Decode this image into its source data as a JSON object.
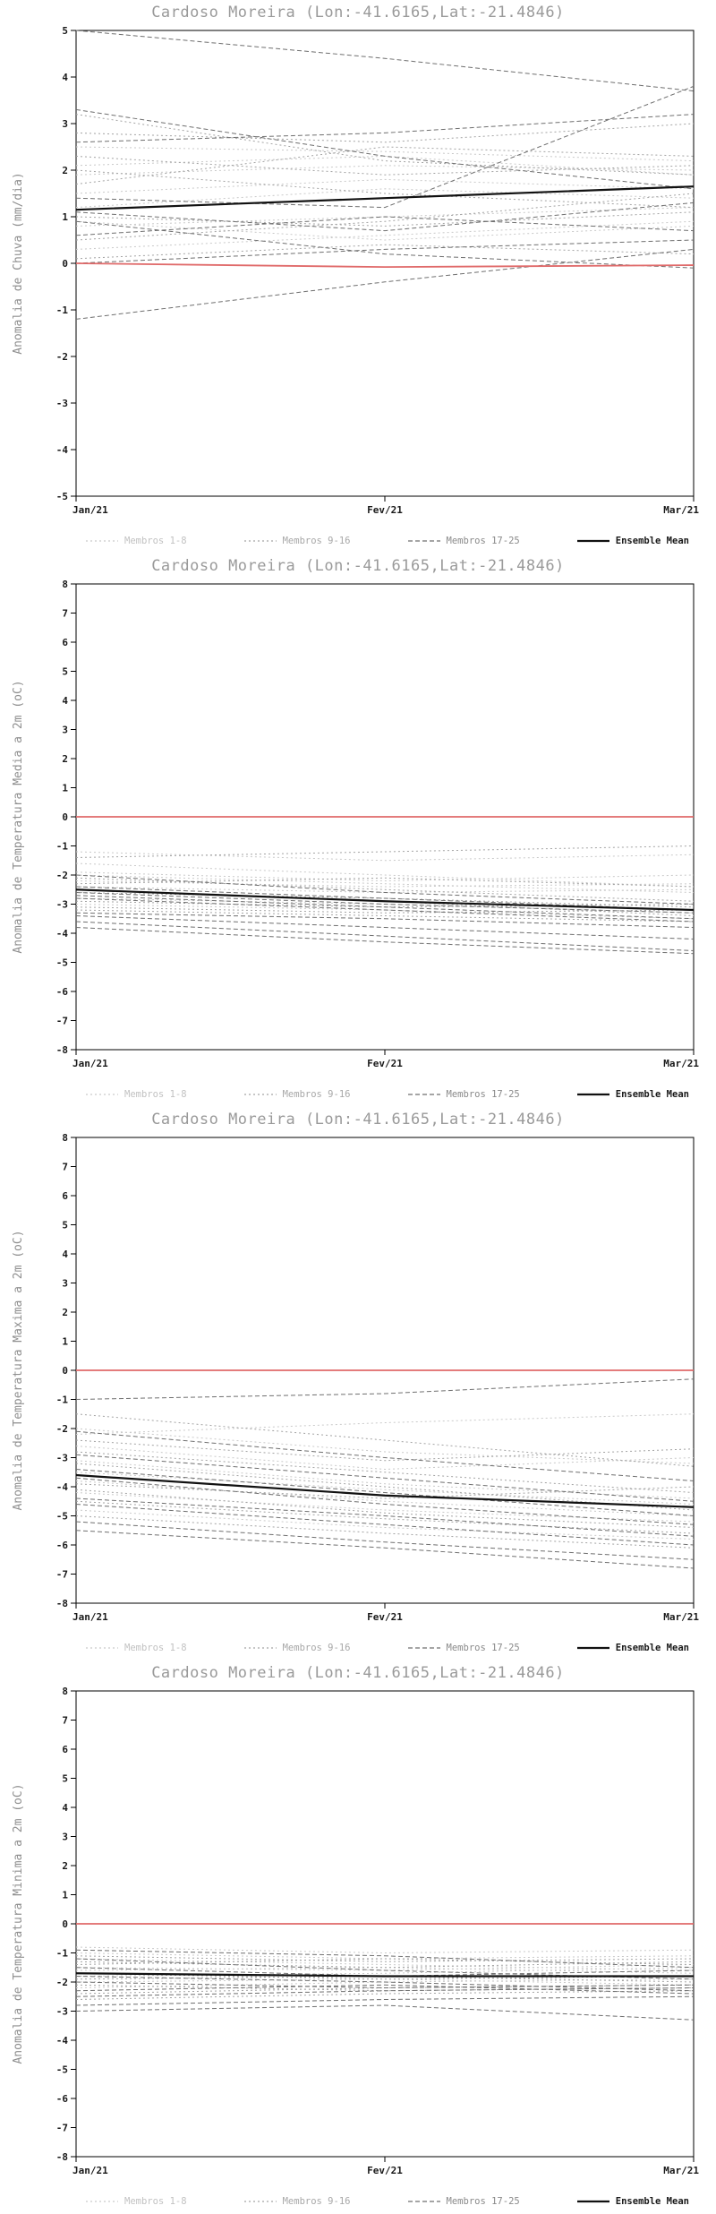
{
  "page": {
    "background": "#ffffff"
  },
  "colors": {
    "title": "#9a9a9a",
    "label": "#8f8f8f",
    "axis": "#000000",
    "tick_text": "#1a1a1a",
    "members_1_8": "#c9c9c9",
    "members_9_16": "#a3a3a3",
    "members_17_25": "#6f6f6f",
    "ensemble_mean": "#111111",
    "zero_line": "#e06a6a"
  },
  "legend": {
    "entries": [
      {
        "label": "Membros 1-8"
      },
      {
        "label": "Membros 9-16"
      },
      {
        "label": "Membros 17-25"
      },
      {
        "label": "Ensemble Mean"
      }
    ]
  },
  "chart_data": [
    {
      "type": "line",
      "title": "Cardoso Moreira (Lon:-41.6165,Lat:-21.4846)",
      "ylabel": "Anomalia de Chuva (mm/dia)",
      "ylim": [
        -5,
        5
      ],
      "ytick_step": 1,
      "x_categories": [
        "Jan/21",
        "Fev/21",
        "Mar/21"
      ],
      "reference_line": [
        0,
        -0.08,
        -0.04
      ],
      "ensemble_mean": [
        1.15,
        1.4,
        1.65
      ],
      "groups": [
        {
          "name": "Membros 1-8",
          "color_key": "members_1_8",
          "series": [
            [
              0.8,
              1.0,
              1.2
            ],
            [
              1.5,
              1.8,
              1.6
            ],
            [
              2.1,
              2.3,
              1.9
            ],
            [
              0.3,
              0.6,
              0.9
            ],
            [
              1.9,
              2.1,
              2.0
            ],
            [
              2.5,
              2.4,
              2.2
            ],
            [
              0.9,
              0.5,
              0.8
            ],
            [
              1.2,
              1.6,
              1.4
            ]
          ]
        },
        {
          "name": "Membros 9-16",
          "color_key": "members_9_16",
          "series": [
            [
              3.2,
              2.2,
              1.9
            ],
            [
              2.8,
              2.6,
              3.0
            ],
            [
              0.1,
              0.4,
              0.2
            ],
            [
              1.0,
              0.8,
              1.1
            ],
            [
              2.0,
              1.5,
              1.2
            ],
            [
              0.5,
              0.9,
              1.5
            ],
            [
              1.7,
              2.5,
              2.3
            ],
            [
              2.3,
              1.9,
              2.1
            ]
          ]
        },
        {
          "name": "Membros 17-25",
          "color_key": "members_17_25",
          "series": [
            [
              3.3,
              2.3,
              1.6
            ],
            [
              -1.2,
              -0.4,
              0.3
            ],
            [
              0.9,
              0.2,
              -0.1
            ],
            [
              0.0,
              0.3,
              0.5
            ],
            [
              1.4,
              1.2,
              3.8
            ],
            [
              2.6,
              2.8,
              3.2
            ],
            [
              0.6,
              1.0,
              0.7
            ],
            [
              1.1,
              0.7,
              1.3
            ],
            [
              5.0,
              4.4,
              3.7
            ]
          ]
        }
      ]
    },
    {
      "type": "line",
      "title": "Cardoso Moreira (Lon:-41.6165,Lat:-21.4846)",
      "ylabel": "Anomalia de Temperatura Media a 2m (oC)",
      "ylim": [
        -8,
        8
      ],
      "ytick_step": 1,
      "x_categories": [
        "Jan/21",
        "Fev/21",
        "Mar/21"
      ],
      "reference_line": [
        0,
        0,
        0
      ],
      "ensemble_mean": [
        -2.5,
        -2.9,
        -3.2
      ],
      "groups": [
        {
          "name": "Membros 1-8",
          "color_key": "members_1_8",
          "series": [
            [
              -1.2,
              -1.5,
              -1.3
            ],
            [
              -2.0,
              -2.3,
              -2.6
            ],
            [
              -2.8,
              -3.0,
              -3.3
            ],
            [
              -1.6,
              -2.0,
              -2.4
            ],
            [
              -2.4,
              -2.6,
              -2.5
            ],
            [
              -3.0,
              -3.2,
              -3.5
            ],
            [
              -2.2,
              -2.4,
              -2.3
            ],
            [
              -1.9,
              -2.2,
              -2.0
            ]
          ]
        },
        {
          "name": "Membros 9-16",
          "color_key": "members_9_16",
          "series": [
            [
              -2.6,
              -2.8,
              -3.1
            ],
            [
              -3.2,
              -3.4,
              -3.6
            ],
            [
              -2.1,
              -2.5,
              -2.9
            ],
            [
              -2.9,
              -3.1,
              -3.0
            ],
            [
              -1.4,
              -1.2,
              -1.0
            ],
            [
              -2.5,
              -2.9,
              -3.4
            ],
            [
              -3.1,
              -3.3,
              -3.2
            ],
            [
              -2.3,
              -2.1,
              -2.4
            ]
          ]
        },
        {
          "name": "Membros 17-25",
          "color_key": "members_17_25",
          "series": [
            [
              -2.7,
              -3.1,
              -3.5
            ],
            [
              -3.4,
              -3.8,
              -4.2
            ],
            [
              -2.0,
              -2.6,
              -3.0
            ],
            [
              -3.6,
              -4.1,
              -4.6
            ],
            [
              -2.8,
              -3.2,
              -3.6
            ],
            [
              -2.4,
              -2.8,
              -3.2
            ],
            [
              -3.3,
              -3.5,
              -3.8
            ],
            [
              -2.6,
              -3.0,
              -3.3
            ],
            [
              -3.8,
              -4.3,
              -4.7
            ]
          ]
        }
      ]
    },
    {
      "type": "line",
      "title": "Cardoso Moreira (Lon:-41.6165,Lat:-21.4846)",
      "ylabel": "Anomalia de Temperatura Maxima a 2m (oC)",
      "ylim": [
        -8,
        8
      ],
      "ytick_step": 1,
      "x_categories": [
        "Jan/21",
        "Fev/21",
        "Mar/21"
      ],
      "reference_line": [
        0,
        0,
        0
      ],
      "ensemble_mean": [
        -3.6,
        -4.3,
        -4.7
      ],
      "groups": [
        {
          "name": "Membros 1-8",
          "color_key": "members_1_8",
          "series": [
            [
              -2.0,
              -2.8,
              -3.2
            ],
            [
              -3.1,
              -3.9,
              -4.4
            ],
            [
              -4.2,
              -4.8,
              -5.2
            ],
            [
              -2.6,
              -3.4,
              -3.0
            ],
            [
              -4.8,
              -5.4,
              -5.8
            ],
            [
              -3.5,
              -4.1,
              -4.6
            ],
            [
              -2.2,
              -1.8,
              -1.5
            ],
            [
              -3.8,
              -4.5,
              -5.0
            ]
          ]
        },
        {
          "name": "Membros 9-16",
          "color_key": "members_9_16",
          "series": [
            [
              -1.5,
              -2.4,
              -3.3
            ],
            [
              -4.5,
              -5.1,
              -5.6
            ],
            [
              -3.2,
              -4.0,
              -4.8
            ],
            [
              -5.0,
              -5.6,
              -6.1
            ],
            [
              -2.8,
              -3.5,
              -4.2
            ],
            [
              -3.9,
              -4.4,
              -4.0
            ],
            [
              -4.1,
              -4.9,
              -5.4
            ],
            [
              -2.4,
              -3.1,
              -2.7
            ]
          ]
        },
        {
          "name": "Membros 17-25",
          "color_key": "members_17_25",
          "series": [
            [
              -1.0,
              -0.8,
              -0.3
            ],
            [
              -4.6,
              -5.3,
              -6.0
            ],
            [
              -3.4,
              -4.2,
              -5.0
            ],
            [
              -5.2,
              -5.9,
              -6.5
            ],
            [
              -2.1,
              -3.0,
              -3.8
            ],
            [
              -4.4,
              -5.0,
              -5.7
            ],
            [
              -3.7,
              -4.6,
              -5.3
            ],
            [
              -5.5,
              -6.1,
              -6.8
            ],
            [
              -2.9,
              -3.7,
              -4.5
            ]
          ]
        }
      ]
    },
    {
      "type": "line",
      "title": "Cardoso Moreira (Lon:-41.6165,Lat:-21.4846)",
      "ylabel": "Anomalia de Temperatura Minima a 2m (oC)",
      "ylim": [
        -8,
        8
      ],
      "ytick_step": 1,
      "x_categories": [
        "Jan/21",
        "Fev/21",
        "Mar/21"
      ],
      "reference_line": [
        0,
        0,
        0
      ],
      "ensemble_mean": [
        -1.7,
        -1.8,
        -1.8
      ],
      "groups": [
        {
          "name": "Membros 1-8",
          "color_key": "members_1_8",
          "series": [
            [
              -1.0,
              -1.2,
              -1.1
            ],
            [
              -1.5,
              -1.6,
              -1.4
            ],
            [
              -2.0,
              -1.9,
              -2.1
            ],
            [
              -1.2,
              -1.4,
              -1.6
            ],
            [
              -1.8,
              -1.7,
              -1.5
            ],
            [
              -2.2,
              -2.0,
              -1.9
            ],
            [
              -0.8,
              -1.0,
              -0.9
            ],
            [
              -1.6,
              -1.5,
              -1.7
            ]
          ]
        },
        {
          "name": "Membros 9-16",
          "color_key": "members_9_16",
          "series": [
            [
              -1.3,
              -1.5,
              -1.3
            ],
            [
              -1.9,
              -1.8,
              -2.0
            ],
            [
              -2.4,
              -2.2,
              -2.1
            ],
            [
              -1.1,
              -1.3,
              -1.2
            ],
            [
              -1.7,
              -1.9,
              -1.8
            ],
            [
              -2.1,
              -2.3,
              -2.2
            ],
            [
              -1.4,
              -1.2,
              -1.4
            ],
            [
              -2.6,
              -2.4,
              -2.3
            ]
          ]
        },
        {
          "name": "Membros 17-25",
          "color_key": "members_17_25",
          "series": [
            [
              -1.5,
              -1.8,
              -1.6
            ],
            [
              -2.3,
              -2.1,
              -2.4
            ],
            [
              -3.0,
              -2.8,
              -3.3
            ],
            [
              -0.9,
              -1.1,
              -1.5
            ],
            [
              -2.0,
              -2.2,
              -2.1
            ],
            [
              -1.2,
              -1.6,
              -1.9
            ],
            [
              -2.5,
              -2.3,
              -2.2
            ],
            [
              -1.8,
              -2.0,
              -2.3
            ],
            [
              -2.8,
              -2.6,
              -2.5
            ]
          ]
        }
      ]
    }
  ]
}
